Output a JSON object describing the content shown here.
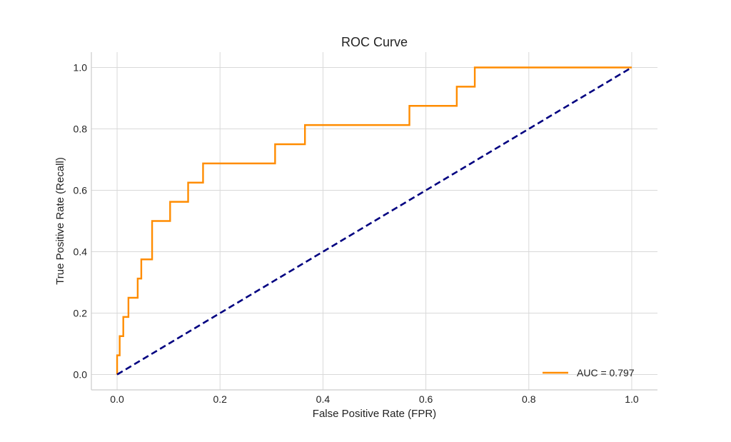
{
  "chart_data": {
    "type": "line",
    "title": "ROC Curve",
    "xlabel": "False Positive Rate (FPR)",
    "ylabel": "True Positive Rate (Recall)",
    "xlim": [
      -0.05,
      1.05
    ],
    "ylim": [
      -0.05,
      1.05
    ],
    "xticks": [
      0.0,
      0.2,
      0.4,
      0.6,
      0.8,
      1.0
    ],
    "yticks": [
      0.0,
      0.2,
      0.4,
      0.6,
      0.8,
      1.0
    ],
    "xtick_labels": [
      "0.0",
      "0.2",
      "0.4",
      "0.6",
      "0.8",
      "1.0"
    ],
    "ytick_labels": [
      "0.0",
      "0.2",
      "0.4",
      "0.6",
      "0.8",
      "1.0"
    ],
    "grid": true,
    "legend_position": "bottom-right",
    "series": [
      {
        "name": "AUC = 0.797",
        "color": "#ff8c00",
        "style": "solid",
        "step": true,
        "x": [
          0.0,
          0.0,
          0.005,
          0.005,
          0.012,
          0.012,
          0.022,
          0.022,
          0.04,
          0.04,
          0.047,
          0.047,
          0.068,
          0.068,
          0.103,
          0.103,
          0.138,
          0.138,
          0.167,
          0.167,
          0.307,
          0.307,
          0.365,
          0.365,
          0.568,
          0.568,
          0.66,
          0.66,
          0.695,
          0.695,
          1.0
        ],
        "y": [
          0.0,
          0.0625,
          0.0625,
          0.125,
          0.125,
          0.1875,
          0.1875,
          0.25,
          0.25,
          0.3125,
          0.3125,
          0.375,
          0.375,
          0.5,
          0.5,
          0.5625,
          0.5625,
          0.625,
          0.625,
          0.6875,
          0.6875,
          0.75,
          0.75,
          0.8125,
          0.8125,
          0.875,
          0.875,
          0.9375,
          0.9375,
          1.0,
          1.0
        ]
      },
      {
        "color": "#000080",
        "style": "dashed",
        "x": [
          0.0,
          1.0
        ],
        "y": [
          0.0,
          1.0
        ]
      }
    ]
  }
}
